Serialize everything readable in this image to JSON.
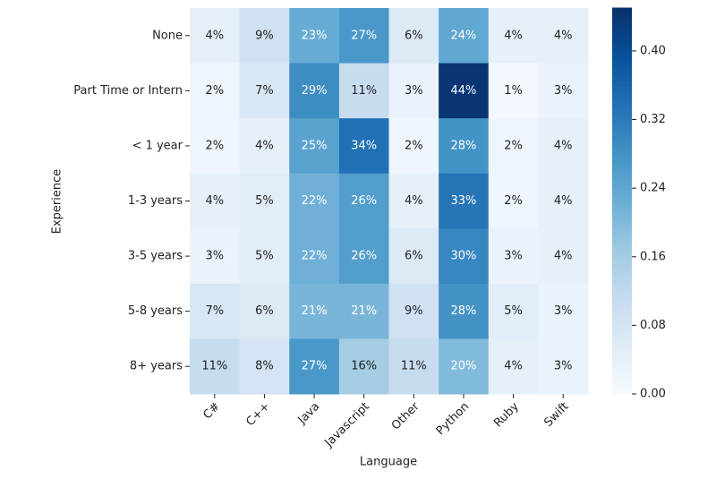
{
  "chart_data": {
    "type": "heatmap",
    "x_label": "Language",
    "y_label": "Experience",
    "x_categories": [
      "C#",
      "C++",
      "Java",
      "Javascript",
      "Other",
      "Python",
      "Ruby",
      "Swift"
    ],
    "y_categories": [
      "None",
      "Part Time or Intern",
      "< 1 year",
      "1-3 years",
      "3-5 years",
      "5-8 years",
      "8+ years"
    ],
    "values": [
      [
        0.04,
        0.09,
        0.23,
        0.27,
        0.06,
        0.24,
        0.04,
        0.04
      ],
      [
        0.02,
        0.07,
        0.29,
        0.11,
        0.03,
        0.44,
        0.01,
        0.03
      ],
      [
        0.02,
        0.04,
        0.25,
        0.34,
        0.02,
        0.28,
        0.02,
        0.04
      ],
      [
        0.04,
        0.05,
        0.22,
        0.26,
        0.04,
        0.33,
        0.02,
        0.04
      ],
      [
        0.03,
        0.05,
        0.22,
        0.26,
        0.06,
        0.3,
        0.03,
        0.04
      ],
      [
        0.07,
        0.06,
        0.21,
        0.21,
        0.09,
        0.28,
        0.05,
        0.03
      ],
      [
        0.11,
        0.08,
        0.27,
        0.16,
        0.11,
        0.2,
        0.04,
        0.03
      ]
    ],
    "value_labels": [
      [
        "4%",
        "9%",
        "23%",
        "27%",
        "6%",
        "24%",
        "4%",
        "4%"
      ],
      [
        "2%",
        "7%",
        "29%",
        "11%",
        "3%",
        "44%",
        "1%",
        "3%"
      ],
      [
        "2%",
        "4%",
        "25%",
        "34%",
        "2%",
        "28%",
        "2%",
        "4%"
      ],
      [
        "4%",
        "5%",
        "22%",
        "26%",
        "4%",
        "33%",
        "2%",
        "4%"
      ],
      [
        "3%",
        "5%",
        "22%",
        "26%",
        "6%",
        "30%",
        "3%",
        "4%"
      ],
      [
        "7%",
        "6%",
        "21%",
        "21%",
        "9%",
        "28%",
        "5%",
        "3%"
      ],
      [
        "11%",
        "8%",
        "27%",
        "16%",
        "11%",
        "20%",
        "4%",
        "3%"
      ]
    ],
    "colormap": "Blues",
    "clim": [
      0,
      0.45
    ],
    "cticks": [
      {
        "value": 0,
        "label": "0.00"
      },
      0.08,
      0.16,
      0.24,
      0.32,
      {
        "value": 0.4,
        "label": "0.40"
      }
    ]
  }
}
